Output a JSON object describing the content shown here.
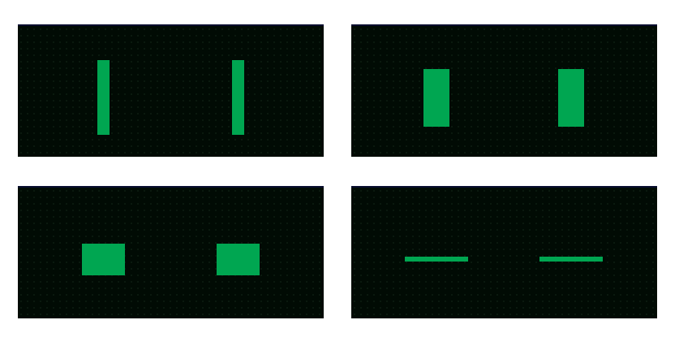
{
  "colors": {
    "page_background": "#ffffff",
    "panel_background": "#010b04",
    "shape_fill": "#00a651"
  },
  "panels": [
    {
      "id": "panel-1",
      "shape_form": "tall-thin-bar",
      "shape_count": 2
    },
    {
      "id": "panel-2",
      "shape_form": "tall-rectangle",
      "shape_count": 2
    },
    {
      "id": "panel-3",
      "shape_form": "wide-rectangle",
      "shape_count": 2
    },
    {
      "id": "panel-4",
      "shape_form": "thin-horizontal-bar",
      "shape_count": 2
    }
  ]
}
